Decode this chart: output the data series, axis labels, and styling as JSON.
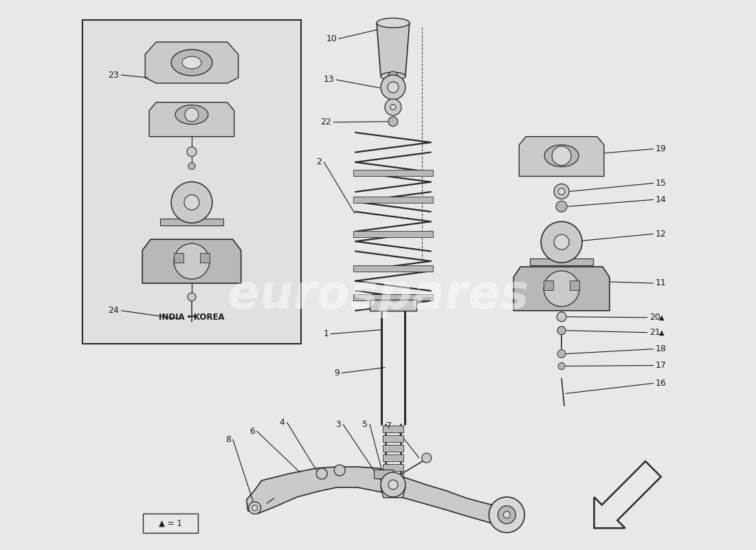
{
  "bg_color": "#e8e8e8",
  "line_color": "#2a2a2a",
  "text_color": "#1a1a1a",
  "fig_w": 11.0,
  "fig_h": 8.0,
  "dpi": 100,
  "watermark": "eurospares",
  "india_korea": "INDIA - KOREA",
  "triangle_legend": "▲ = 1"
}
